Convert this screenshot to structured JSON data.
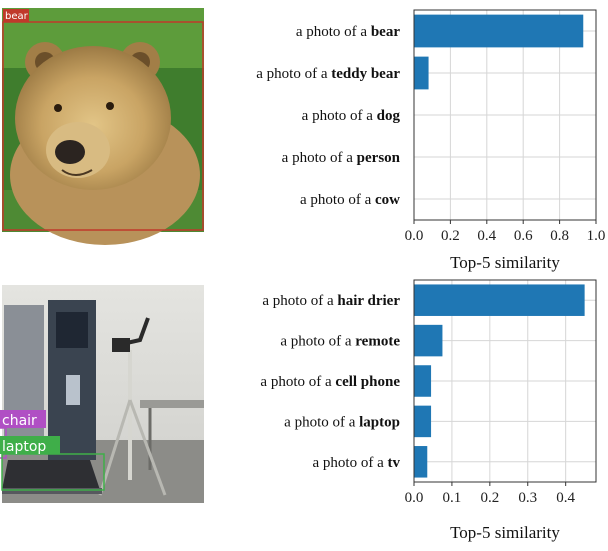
{
  "panels": [
    {
      "photo": {
        "subject": "bear",
        "detections": [
          {
            "label": "bear",
            "color": "#c0392b"
          }
        ]
      },
      "chart_data": {
        "type": "bar",
        "orientation": "horizontal",
        "categories": [
          {
            "prefix": "a photo of a ",
            "bold": "bear"
          },
          {
            "prefix": "a photo of a ",
            "bold": "teddy bear"
          },
          {
            "prefix": "a photo of a ",
            "bold": "dog"
          },
          {
            "prefix": "a photo of a ",
            "bold": "person"
          },
          {
            "prefix": "a photo of a ",
            "bold": "cow"
          }
        ],
        "values": [
          0.93,
          0.08,
          0.0,
          0.0,
          0.0
        ],
        "xlabel": "Top-5 similarity",
        "xlim": [
          0,
          1.0
        ],
        "xticks": [
          0.0,
          0.2,
          0.4,
          0.6,
          0.8,
          1.0
        ],
        "xtick_labels": [
          "0.0",
          "0.2",
          "0.4",
          "0.6",
          "0.8",
          "1.0"
        ],
        "grid": true,
        "bar_color": "#1f77b4"
      }
    },
    {
      "photo": {
        "subject": "room with a hair dryer stand, chair and laptop",
        "detections": [
          {
            "label": "chair",
            "color": "#b04fc4"
          },
          {
            "label": "laptop",
            "color": "#3fae49"
          }
        ]
      },
      "chart_data": {
        "type": "bar",
        "orientation": "horizontal",
        "categories": [
          {
            "prefix": "a photo of a ",
            "bold": "hair drier"
          },
          {
            "prefix": "a photo of a ",
            "bold": "remote"
          },
          {
            "prefix": "a photo of a ",
            "bold": "cell phone"
          },
          {
            "prefix": "a photo of a ",
            "bold": "laptop"
          },
          {
            "prefix": "a photo of a ",
            "bold": "tv"
          }
        ],
        "values": [
          0.45,
          0.075,
          0.045,
          0.045,
          0.035
        ],
        "xlabel": "Top-5 similarity",
        "xlim": [
          0,
          0.48
        ],
        "xticks": [
          0.0,
          0.1,
          0.2,
          0.3,
          0.4
        ],
        "xtick_labels": [
          "0.0",
          "0.1",
          "0.2",
          "0.3",
          "0.4"
        ],
        "grid": true,
        "bar_color": "#1f77b4"
      }
    }
  ]
}
